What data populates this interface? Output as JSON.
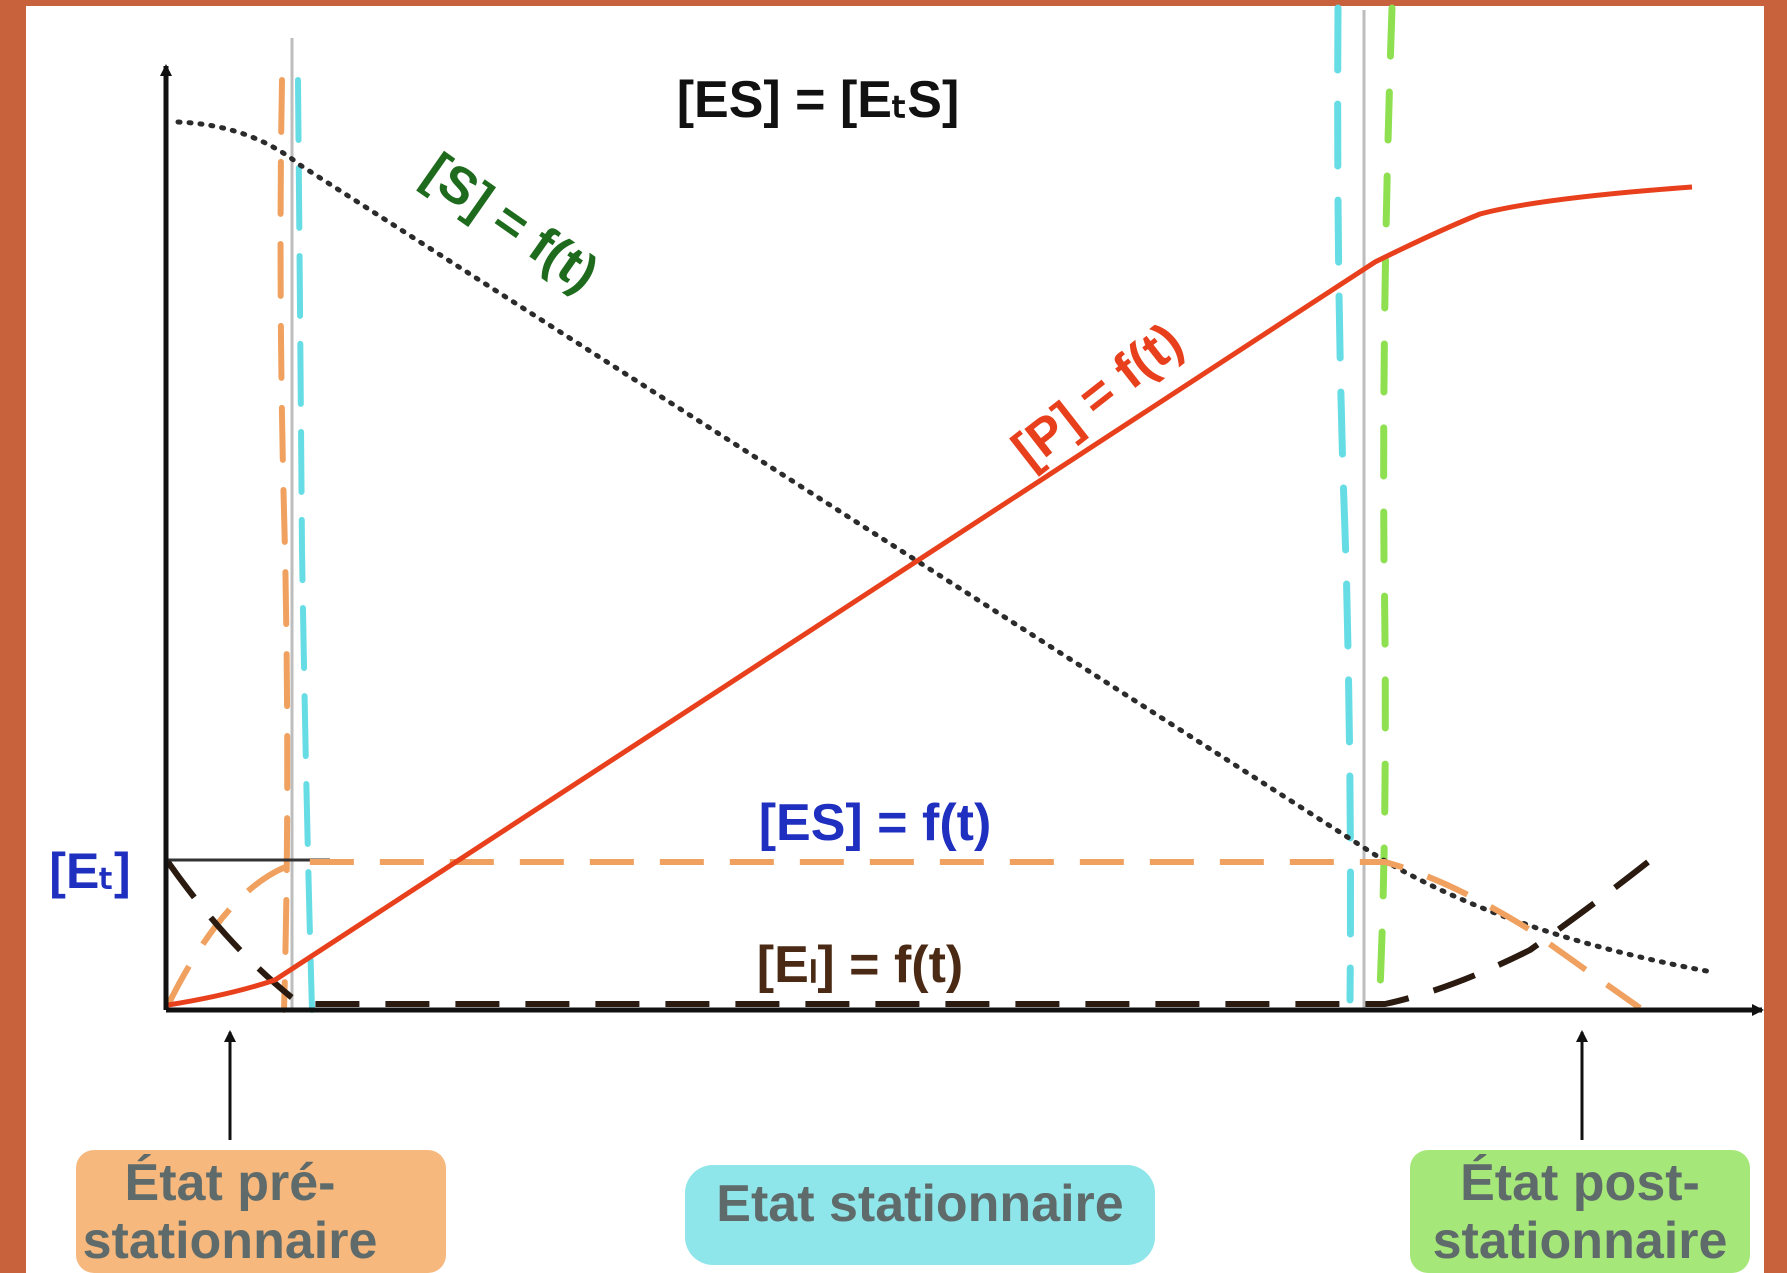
{
  "labels": {
    "equality": "[ES] = [EₜS]",
    "substrate_curve": "[S] = f(t)",
    "product_curve": "[P] = f(t)",
    "es_curve": "[ES] = f(t)",
    "free_enzyme_curve": "[Eₗ] = f(t)",
    "total_enzyme": "[Eₜ]"
  },
  "phases": {
    "pre_line1": "État pré-",
    "pre_line2": "stationnaire",
    "steady": "Etat stationnaire",
    "post_line1": "État post-",
    "post_line2": "stationnaire"
  },
  "colors": {
    "background": "#c8623c",
    "product": "#e8401c",
    "substrate_label": "#1e6b1e",
    "es_label": "#1f2fbf",
    "es_dash": "#f0a15f",
    "free_enzyme": "#2a1a10",
    "free_enzyme_label": "#4a2a14",
    "highlight_orange": "#f6b87d",
    "highlight_cyan": "#8fe6ea",
    "highlight_green": "#a6e779",
    "phase_text": "#5f6b6b"
  },
  "icons": [
    "arrow-up-icon",
    "arrow-right-icon"
  ]
}
